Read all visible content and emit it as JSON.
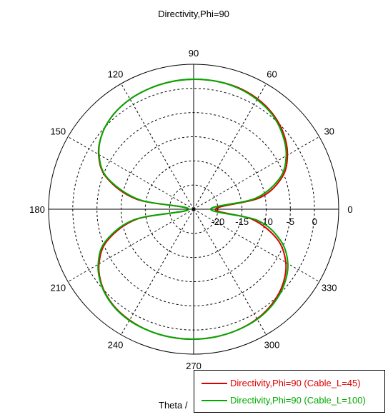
{
  "chart_data": {
    "type": "polar-line",
    "title": "Directivity,Phi=90",
    "xlabel": "Theta /",
    "angle_ticks": [
      "0",
      "30",
      "60",
      "90",
      "120",
      "150",
      "180",
      "210",
      "240",
      "270",
      "300",
      "330"
    ],
    "radial_ticks": [
      "-20",
      "-15",
      "-10",
      "-5",
      "0"
    ],
    "radial_range_db": [
      -25,
      5
    ],
    "grid": true,
    "legend_position": "bottom-right",
    "series": [
      {
        "name": "Directivity,Phi=90 (Cable_L=45)",
        "color": "#dd0000",
        "theta": [
          0,
          10,
          20,
          30,
          40,
          50,
          60,
          70,
          80,
          90,
          100,
          110,
          120,
          130,
          140,
          150,
          160,
          170,
          180,
          190,
          200,
          210,
          220,
          230,
          240,
          250,
          260,
          270,
          280,
          290,
          300,
          310,
          320,
          330,
          340,
          350
        ],
        "directivity_db": [
          -20.5,
          -11.0,
          -5.5,
          -2.6,
          -0.7,
          0.6,
          1.4,
          1.8,
          1.9,
          1.9,
          1.8,
          1.6,
          1.3,
          0.7,
          -0.4,
          -2.3,
          -5.8,
          -13.0,
          -24.0,
          -13.0,
          -6.0,
          -2.4,
          -0.3,
          0.9,
          1.5,
          1.8,
          1.9,
          1.9,
          1.8,
          1.6,
          1.2,
          0.4,
          -0.9,
          -3.0,
          -6.5,
          -12.5
        ]
      },
      {
        "name": "Directivity,Phi=90 (Cable_L=100)",
        "color": "#00aa00",
        "theta": [
          0,
          10,
          20,
          30,
          40,
          50,
          60,
          70,
          80,
          90,
          100,
          110,
          120,
          130,
          140,
          150,
          160,
          170,
          180,
          190,
          200,
          210,
          220,
          230,
          240,
          250,
          260,
          270,
          280,
          290,
          300,
          310,
          320,
          330,
          340,
          350
        ],
        "directivity_db": [
          -21.5,
          -12.0,
          -6.0,
          -2.9,
          -1.0,
          0.4,
          1.2,
          1.7,
          1.9,
          1.9,
          1.8,
          1.6,
          1.3,
          0.7,
          -0.4,
          -2.4,
          -6.0,
          -13.5,
          -24.0,
          -12.5,
          -5.6,
          -2.2,
          -0.2,
          1.0,
          1.6,
          1.8,
          1.9,
          1.9,
          1.8,
          1.6,
          1.3,
          0.6,
          -0.6,
          -2.5,
          -5.8,
          -11.5
        ]
      }
    ]
  }
}
